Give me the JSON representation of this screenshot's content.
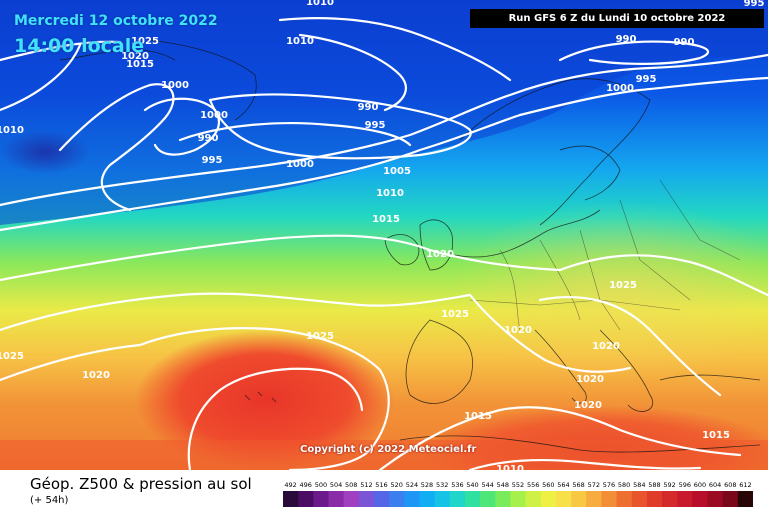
{
  "header": {
    "date_line": "Mercredi 12 octobre 2022",
    "time_line": "14:00 locale",
    "run_info": "Run GFS 6 Z du Lundi 10 octobre 2022"
  },
  "map": {
    "copyright": "Copyright (c) 2022 Meteociel.fr",
    "isobar_labels": [
      {
        "text": "1025",
        "where": "north-atlantic-top-left"
      },
      {
        "text": "1020",
        "where": "north-atlantic-top-left"
      },
      {
        "text": "1015",
        "where": "north-atlantic-top-left"
      },
      {
        "text": "1010",
        "where": "top-left-edge"
      },
      {
        "text": "1010",
        "where": "greenland-east"
      },
      {
        "text": "1000",
        "where": "low-center-west"
      },
      {
        "text": "1000",
        "where": "low-center"
      },
      {
        "text": "990",
        "where": "low-center"
      },
      {
        "text": "995",
        "where": "low-center"
      },
      {
        "text": "990",
        "where": "iceland-low"
      },
      {
        "text": "995",
        "where": "iceland-low"
      },
      {
        "text": "1000",
        "where": "north-atlantic"
      },
      {
        "text": "1005",
        "where": "north-atlantic"
      },
      {
        "text": "1010",
        "where": "north-atlantic"
      },
      {
        "text": "1015",
        "where": "north-sea"
      },
      {
        "text": "1020",
        "where": "british-isles"
      },
      {
        "text": "1025",
        "where": "france"
      },
      {
        "text": "1020",
        "where": "alps"
      },
      {
        "text": "1025",
        "where": "central-europe"
      },
      {
        "text": "1020",
        "where": "adriatic"
      },
      {
        "text": "1020",
        "where": "italy-south"
      },
      {
        "text": "1020",
        "where": "ionian"
      },
      {
        "text": "1015",
        "where": "mediterranean"
      },
      {
        "text": "1015",
        "where": "turkey"
      },
      {
        "text": "1010",
        "where": "north-africa"
      },
      {
        "text": "1025",
        "where": "azores"
      },
      {
        "text": "1025",
        "where": "west-edge"
      },
      {
        "text": "1020",
        "where": "atlantic-southwest"
      },
      {
        "text": "990",
        "where": "norwegian-sea"
      },
      {
        "text": "990",
        "where": "norwegian-sea-east"
      },
      {
        "text": "995",
        "where": "scandinavia-north"
      },
      {
        "text": "1000",
        "where": "scandinavia-north"
      },
      {
        "text": "995",
        "where": "top-right-edge"
      },
      {
        "text": "1010",
        "where": "top-center"
      }
    ]
  },
  "footer": {
    "title": "Géop. Z500 & pression au sol",
    "subtitle": "(+ 54h)"
  },
  "legend": {
    "values": [
      "492",
      "496",
      "500",
      "504",
      "508",
      "512",
      "516",
      "520",
      "524",
      "528",
      "532",
      "536",
      "540",
      "544",
      "548",
      "552",
      "556",
      "560",
      "564",
      "568",
      "572",
      "576",
      "580",
      "584",
      "588",
      "592",
      "596",
      "600",
      "604",
      "608",
      "612"
    ],
    "colors": [
      "#2a0a3a",
      "#4a0d63",
      "#6a1a8a",
      "#8a2ca8",
      "#a03fbf",
      "#7a55d6",
      "#5566e6",
      "#3a7ef0",
      "#1f96f5",
      "#12adf2",
      "#16c3e6",
      "#1fd6c8",
      "#2fe0a0",
      "#4fe678",
      "#7aec5c",
      "#a6f04c",
      "#cff045",
      "#eef044",
      "#f8e048",
      "#f8c844",
      "#f6ac3e",
      "#f28e36",
      "#ee7030",
      "#e8552c",
      "#e03c2c",
      "#d42a2c",
      "#c81a2c",
      "#b80e2a",
      "#9a0a22",
      "#7a081a",
      "#2a0508"
    ]
  }
}
